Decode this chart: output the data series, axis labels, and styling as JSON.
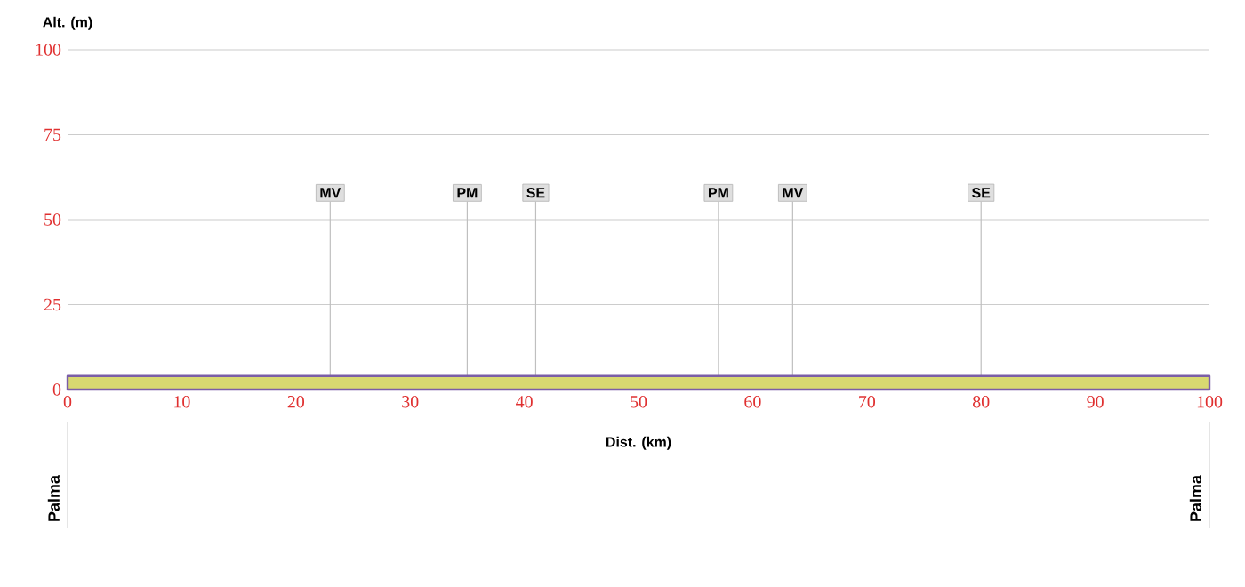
{
  "chart_data": {
    "type": "area",
    "xlabel": "Dist. (km)",
    "ylabel": "Alt. (m)",
    "x": [
      0,
      100
    ],
    "series": [
      {
        "color": "#d8d870",
        "values": [
          4,
          4
        ]
      }
    ],
    "xlim": [
      0,
      100
    ],
    "ylim": [
      0,
      100
    ],
    "xticks": [
      0,
      10,
      20,
      30,
      40,
      50,
      60,
      70,
      80,
      90,
      100
    ],
    "yticks": [
      0,
      25,
      50,
      75,
      100
    ],
    "grid": "y",
    "annotations": [
      {
        "text": "MV",
        "x": 23,
        "y": 4
      },
      {
        "text": "PM",
        "x": 35,
        "y": 4
      },
      {
        "text": "SE",
        "x": 41,
        "y": 4
      },
      {
        "text": "PM",
        "x": 57,
        "y": 4
      },
      {
        "text": "MV",
        "x": 63.5,
        "y": 4
      },
      {
        "text": "SE",
        "x": 80,
        "y": 4
      },
      "Palma",
      "Palma"
    ]
  }
}
